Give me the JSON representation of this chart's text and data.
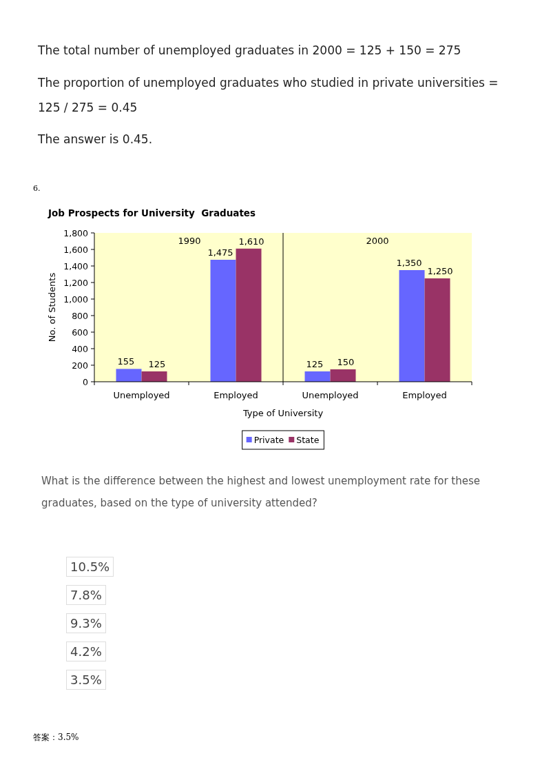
{
  "chart_data": {
    "type": "bar",
    "title": "Job Prospects for University  Graduates",
    "xlabel": "Type of University",
    "ylabel": "No. of Students",
    "categories": [
      "Unemployed",
      "Employed",
      "Unemployed",
      "Employed"
    ],
    "series": [
      {
        "name": "Private",
        "color": "#6666ff",
        "values": [
          155,
          1475,
          125,
          1350
        ]
      },
      {
        "name": "State",
        "color": "#993366",
        "values": [
          125,
          1610,
          150,
          1250
        ]
      }
    ],
    "ylim": [
      0,
      1800
    ],
    "yticks": [
      0,
      200,
      400,
      600,
      800,
      {
        "value": 1000,
        "label": "1,000"
      },
      {
        "value": 1200,
        "label": "1,200"
      },
      {
        "value": 1400,
        "label": "1,400"
      },
      {
        "value": 1600,
        "label": "1,600"
      },
      {
        "value": 1800,
        "label": "1,800"
      }
    ],
    "value_labels": [
      [
        "155",
        "1,475",
        "125",
        "1,350"
      ],
      [
        "125",
        "1,610",
        "150",
        "1,250"
      ]
    ],
    "legend": "bottom",
    "annotations": [
      "The total number of unemployed graduates in 2000 = 125 + 150 = 275",
      "The proportion of unemployed graduates who studied in private universities = 125 / 275 = 0.45",
      "The answer is 0.45.",
      "6.",
      "1990",
      "2000",
      "What is the difference between the highest and lowest unemployment rate for these graduates, based on the type of university attended?",
      "10.5%",
      "7.8%",
      "9.3%",
      "4.2%",
      "3.5%",
      "答案：3.5%"
    ]
  }
}
